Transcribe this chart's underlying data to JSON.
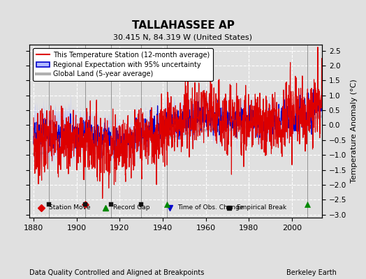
{
  "title": "TALLAHASSEE AP",
  "subtitle": "30.415 N, 84.319 W (United States)",
  "xlabel_bottom": "Data Quality Controlled and Aligned at Breakpoints",
  "xlabel_right": "Berkeley Earth",
  "ylabel": "Temperature Anomaly (°C)",
  "xlim": [
    1878,
    2014
  ],
  "ylim": [
    -3.1,
    2.7
  ],
  "yticks": [
    -3,
    -2.5,
    -2,
    -1.5,
    -1,
    -0.5,
    0,
    0.5,
    1,
    1.5,
    2,
    2.5
  ],
  "xticks": [
    1880,
    1900,
    1920,
    1940,
    1960,
    1980,
    2000
  ],
  "bg_color": "#e0e0e0",
  "plot_bg_color": "#e0e0e0",
  "grid_color": "#ffffff",
  "station_color": "#dd0000",
  "regional_line_color": "#0000cc",
  "regional_fill_color": "#b0b8ff",
  "global_color": "#b0b0b0",
  "station_moves": [
    1904
  ],
  "record_gaps": [
    1942,
    2007
  ],
  "time_obs_changes": [],
  "empirical_breaks": [
    1887,
    1904,
    1916,
    1930
  ],
  "marker_y": -2.65,
  "figsize": [
    5.24,
    4.0
  ],
  "dpi": 100
}
